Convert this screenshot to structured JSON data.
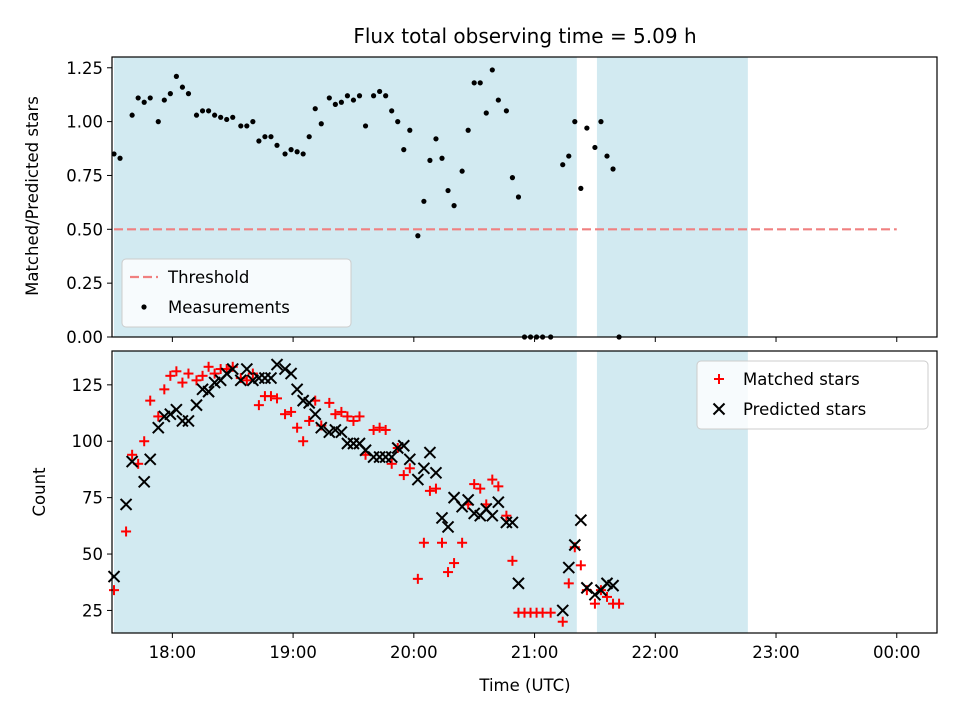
{
  "chart_data": [
    {
      "type": "scatter",
      "title": "Flux total observing time = 5.09 h",
      "xlabel": "",
      "ylabel": "Matched/Predicted stars",
      "xlim": [
        "17:30",
        "00:20"
      ],
      "ylim": [
        0,
        1.3
      ],
      "yticks": [
        "0.00",
        "0.25",
        "0.50",
        "0.75",
        "1.00",
        "1.25"
      ],
      "xtick_labels_visible": false,
      "shaded_intervals": [
        [
          "17:31",
          "21:21"
        ],
        [
          "21:31",
          "22:46"
        ]
      ],
      "shade_color": "#add8e6",
      "legend_position": "lower-left",
      "legend": [
        {
          "label": "Threshold",
          "marker": "dashed-line",
          "color": "#f08080"
        },
        {
          "label": "Measurements",
          "marker": "dot",
          "color": "#000000"
        }
      ],
      "threshold": {
        "y": 0.5,
        "x_start": "17:31",
        "x_end": "00:00",
        "color": "#f08080"
      },
      "series": [
        {
          "name": "Measurements",
          "color": "#000000",
          "points": [
            [
              "17:31",
              0.85
            ],
            [
              "17:34",
              0.83
            ],
            [
              "17:40",
              1.03
            ],
            [
              "17:43",
              1.11
            ],
            [
              "17:46",
              1.09
            ],
            [
              "17:49",
              1.11
            ],
            [
              "17:53",
              1.0
            ],
            [
              "17:56",
              1.1
            ],
            [
              "17:59",
              1.13
            ],
            [
              "18:02",
              1.21
            ],
            [
              "18:05",
              1.16
            ],
            [
              "18:08",
              1.13
            ],
            [
              "18:12",
              1.03
            ],
            [
              "18:15",
              1.05
            ],
            [
              "18:18",
              1.05
            ],
            [
              "18:21",
              1.03
            ],
            [
              "18:24",
              1.02
            ],
            [
              "18:27",
              1.01
            ],
            [
              "18:30",
              1.02
            ],
            [
              "18:34",
              0.98
            ],
            [
              "18:37",
              0.98
            ],
            [
              "18:40",
              1.0
            ],
            [
              "18:43",
              0.91
            ],
            [
              "18:46",
              0.93
            ],
            [
              "18:49",
              0.93
            ],
            [
              "18:52",
              0.89
            ],
            [
              "18:56",
              0.85
            ],
            [
              "18:59",
              0.87
            ],
            [
              "19:02",
              0.86
            ],
            [
              "19:05",
              0.85
            ],
            [
              "19:08",
              0.93
            ],
            [
              "19:11",
              1.06
            ],
            [
              "19:14",
              0.99
            ],
            [
              "19:18",
              1.11
            ],
            [
              "19:21",
              1.08
            ],
            [
              "19:24",
              1.09
            ],
            [
              "19:27",
              1.12
            ],
            [
              "19:30",
              1.1
            ],
            [
              "19:33",
              1.12
            ],
            [
              "19:36",
              0.98
            ],
            [
              "19:40",
              1.12
            ],
            [
              "19:43",
              1.14
            ],
            [
              "19:46",
              1.12
            ],
            [
              "19:49",
              1.05
            ],
            [
              "19:52",
              1.0
            ],
            [
              "19:55",
              0.87
            ],
            [
              "19:58",
              0.96
            ],
            [
              "20:02",
              0.47
            ],
            [
              "20:05",
              0.63
            ],
            [
              "20:08",
              0.82
            ],
            [
              "20:11",
              0.92
            ],
            [
              "20:14",
              0.83
            ],
            [
              "20:17",
              0.68
            ],
            [
              "20:20",
              0.61
            ],
            [
              "20:24",
              0.77
            ],
            [
              "20:27",
              0.96
            ],
            [
              "20:30",
              1.18
            ],
            [
              "20:33",
              1.18
            ],
            [
              "20:36",
              1.04
            ],
            [
              "20:39",
              1.24
            ],
            [
              "20:42",
              1.1
            ],
            [
              "20:46",
              1.05
            ],
            [
              "20:49",
              0.74
            ],
            [
              "20:52",
              0.65
            ],
            [
              "20:55",
              0.0
            ],
            [
              "20:58",
              0.0
            ],
            [
              "21:01",
              0.0
            ],
            [
              "21:04",
              0.0
            ],
            [
              "21:08",
              0.0
            ],
            [
              "21:14",
              0.8
            ],
            [
              "21:17",
              0.84
            ],
            [
              "21:20",
              1.0
            ],
            [
              "21:23",
              0.69
            ],
            [
              "21:26",
              0.97
            ],
            [
              "21:30",
              0.88
            ],
            [
              "21:33",
              1.0
            ],
            [
              "21:36",
              0.84
            ],
            [
              "21:39",
              0.78
            ],
            [
              "21:42",
              0.0
            ]
          ]
        }
      ]
    },
    {
      "type": "scatter",
      "title": "",
      "xlabel": "Time (UTC)",
      "ylabel": "Count",
      "xlim": [
        "17:30",
        "00:20"
      ],
      "ylim": [
        15,
        140
      ],
      "yticks": [
        "25",
        "50",
        "75",
        "100",
        "125"
      ],
      "xticks": [
        "18:00",
        "19:00",
        "20:00",
        "21:00",
        "22:00",
        "23:00",
        "00:00"
      ],
      "shaded_intervals": [
        [
          "17:31",
          "21:21"
        ],
        [
          "21:31",
          "22:46"
        ]
      ],
      "shade_color": "#add8e6",
      "legend_position": "upper-right",
      "legend": [
        {
          "label": "Matched stars",
          "marker": "plus",
          "color": "#ff0000"
        },
        {
          "label": "Predicted stars",
          "marker": "x",
          "color": "#000000"
        }
      ],
      "series": [
        {
          "name": "Matched stars",
          "color": "#ff0000",
          "marker": "plus",
          "points": [
            [
              "17:31",
              34
            ],
            [
              "17:37",
              60
            ],
            [
              "17:40",
              94
            ],
            [
              "17:43",
              90
            ],
            [
              "17:46",
              100
            ],
            [
              "17:49",
              118
            ],
            [
              "17:53",
              111
            ],
            [
              "17:56",
              123
            ],
            [
              "17:59",
              129
            ],
            [
              "18:02",
              131
            ],
            [
              "18:05",
              126
            ],
            [
              "18:08",
              130
            ],
            [
              "18:12",
              127
            ],
            [
              "18:15",
              129
            ],
            [
              "18:18",
              133
            ],
            [
              "18:21",
              130
            ],
            [
              "18:24",
              132
            ],
            [
              "18:27",
              132
            ],
            [
              "18:30",
              133
            ],
            [
              "18:34",
              128
            ],
            [
              "18:37",
              127
            ],
            [
              "18:40",
              130
            ],
            [
              "18:43",
              116
            ],
            [
              "18:46",
              120
            ],
            [
              "18:49",
              120
            ],
            [
              "18:52",
              119
            ],
            [
              "18:56",
              112
            ],
            [
              "18:59",
              113
            ],
            [
              "19:02",
              106
            ],
            [
              "19:05",
              100
            ],
            [
              "19:08",
              109
            ],
            [
              "19:11",
              118
            ],
            [
              "19:14",
              107
            ],
            [
              "19:18",
              117
            ],
            [
              "19:21",
              112
            ],
            [
              "19:24",
              113
            ],
            [
              "19:27",
              111
            ],
            [
              "19:30",
              109
            ],
            [
              "19:33",
              111
            ],
            [
              "19:36",
              94
            ],
            [
              "19:40",
              105
            ],
            [
              "19:43",
              106
            ],
            [
              "19:46",
              105
            ],
            [
              "19:49",
              90
            ],
            [
              "19:52",
              97
            ],
            [
              "19:55",
              85
            ],
            [
              "19:58",
              88
            ],
            [
              "20:02",
              39
            ],
            [
              "20:05",
              55
            ],
            [
              "20:08",
              78
            ],
            [
              "20:11",
              79
            ],
            [
              "20:14",
              55
            ],
            [
              "20:17",
              42
            ],
            [
              "20:20",
              46
            ],
            [
              "20:24",
              55
            ],
            [
              "20:27",
              72
            ],
            [
              "20:30",
              81
            ],
            [
              "20:33",
              79
            ],
            [
              "20:36",
              72
            ],
            [
              "20:39",
              83
            ],
            [
              "20:42",
              80
            ],
            [
              "20:46",
              67
            ],
            [
              "20:49",
              47
            ],
            [
              "20:52",
              24
            ],
            [
              "20:55",
              24
            ],
            [
              "20:58",
              24
            ],
            [
              "21:01",
              24
            ],
            [
              "21:04",
              24
            ],
            [
              "21:08",
              24
            ],
            [
              "21:14",
              20
            ],
            [
              "21:17",
              37
            ],
            [
              "21:20",
              53
            ],
            [
              "21:23",
              45
            ],
            [
              "21:26",
              34
            ],
            [
              "21:30",
              28
            ],
            [
              "21:33",
              34
            ],
            [
              "21:36",
              31
            ],
            [
              "21:39",
              28
            ],
            [
              "21:42",
              28
            ]
          ]
        },
        {
          "name": "Predicted stars",
          "color": "#000000",
          "marker": "x",
          "points": [
            [
              "17:31",
              40
            ],
            [
              "17:37",
              72
            ],
            [
              "17:40",
              91
            ],
            [
              "17:46",
              82
            ],
            [
              "17:49",
              92
            ],
            [
              "17:53",
              106
            ],
            [
              "17:56",
              111
            ],
            [
              "17:59",
              112
            ],
            [
              "18:02",
              114
            ],
            [
              "18:05",
              109
            ],
            [
              "18:08",
              109
            ],
            [
              "18:12",
              116
            ],
            [
              "18:15",
              123
            ],
            [
              "18:18",
              122
            ],
            [
              "18:21",
              126
            ],
            [
              "18:24",
              127
            ],
            [
              "18:27",
              130
            ],
            [
              "18:30",
              132
            ],
            [
              "18:34",
              127
            ],
            [
              "18:37",
              132
            ],
            [
              "18:40",
              127
            ],
            [
              "18:43",
              128
            ],
            [
              "18:46",
              128
            ],
            [
              "18:49",
              128
            ],
            [
              "18:52",
              134
            ],
            [
              "18:56",
              132
            ],
            [
              "18:59",
              130
            ],
            [
              "19:02",
              123
            ],
            [
              "19:05",
              118
            ],
            [
              "19:08",
              117
            ],
            [
              "19:11",
              112
            ],
            [
              "19:14",
              106
            ],
            [
              "19:18",
              104
            ],
            [
              "19:21",
              105
            ],
            [
              "19:24",
              104
            ],
            [
              "19:27",
              99
            ],
            [
              "19:30",
              99
            ],
            [
              "19:33",
              99
            ],
            [
              "19:36",
              96
            ],
            [
              "19:40",
              93
            ],
            [
              "19:43",
              93
            ],
            [
              "19:46",
              93
            ],
            [
              "19:49",
              93
            ],
            [
              "19:52",
              97
            ],
            [
              "19:55",
              98
            ],
            [
              "19:58",
              92
            ],
            [
              "20:02",
              83
            ],
            [
              "20:05",
              88
            ],
            [
              "20:08",
              95
            ],
            [
              "20:11",
              86
            ],
            [
              "20:14",
              66
            ],
            [
              "20:17",
              62
            ],
            [
              "20:20",
              75
            ],
            [
              "20:24",
              71
            ],
            [
              "20:27",
              74
            ],
            [
              "20:30",
              68
            ],
            [
              "20:33",
              67
            ],
            [
              "20:36",
              70
            ],
            [
              "20:39",
              67
            ],
            [
              "20:42",
              73
            ],
            [
              "20:46",
              64
            ],
            [
              "20:49",
              64
            ],
            [
              "20:52",
              37
            ],
            [
              "21:14",
              25
            ],
            [
              "21:17",
              44
            ],
            [
              "21:20",
              54
            ],
            [
              "21:23",
              65
            ],
            [
              "21:26",
              35
            ],
            [
              "21:30",
              32
            ],
            [
              "21:33",
              34
            ],
            [
              "21:36",
              37
            ],
            [
              "21:39",
              36
            ]
          ]
        }
      ]
    }
  ]
}
